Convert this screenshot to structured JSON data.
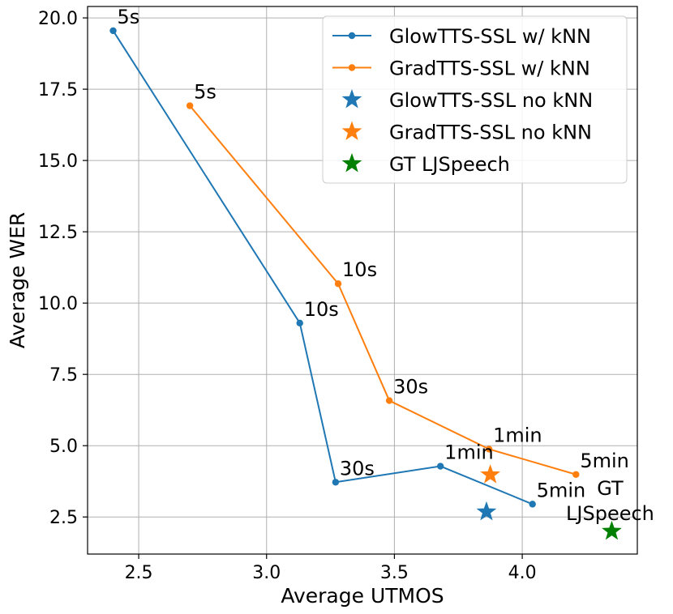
{
  "chart_data": {
    "type": "scatter",
    "title": "",
    "xlabel": "Average UTMOS",
    "ylabel": "Average WER",
    "xlim": [
      2.3,
      4.45
    ],
    "ylim": [
      1.2,
      20.4
    ],
    "grid": true,
    "legend_position": "top-right",
    "x_ticks": [
      2.5,
      3.0,
      3.5,
      4.0
    ],
    "x_tick_labels": [
      "2.5",
      "3.0",
      "3.5",
      "4.0"
    ],
    "y_ticks": [
      2.5,
      5.0,
      7.5,
      10.0,
      12.5,
      15.0,
      17.5,
      20.0
    ],
    "y_tick_labels": [
      "2.5",
      "5.0",
      "7.5",
      "10.0",
      "12.5",
      "15.0",
      "17.5",
      "20.0"
    ],
    "series": [
      {
        "name": "GlowTTS-SSL w/ kNN",
        "kind": "line",
        "color": "#1f77b4",
        "x": [
          2.4,
          3.13,
          3.27,
          3.68,
          4.04
        ],
        "y": [
          19.55,
          9.3,
          3.72,
          4.28,
          2.95
        ],
        "labels": [
          "5s",
          "10s",
          "30s",
          "1min",
          "5min"
        ]
      },
      {
        "name": "GradTTS-SSL w/ kNN",
        "kind": "line",
        "color": "#ff7f0e",
        "x": [
          2.7,
          3.28,
          3.48,
          3.87,
          4.21
        ],
        "y": [
          16.92,
          10.68,
          6.58,
          4.88,
          3.99
        ],
        "labels": [
          "5s",
          "10s",
          "30s",
          "1min",
          "5min"
        ]
      },
      {
        "name": "GlowTTS-SSL no kNN",
        "kind": "star",
        "color": "#1f77b4",
        "x": [
          3.86
        ],
        "y": [
          2.68
        ],
        "labels": [
          ""
        ]
      },
      {
        "name": "GradTTS-SSL no kNN",
        "kind": "star",
        "color": "#ff7f0e",
        "x": [
          3.875
        ],
        "y": [
          3.98
        ],
        "labels": [
          ""
        ]
      },
      {
        "name": "GT LJSpeech",
        "kind": "star",
        "color": "#008000",
        "x": [
          4.35
        ],
        "y": [
          2.0
        ],
        "labels": [
          "GT\nLJSpeech"
        ]
      }
    ]
  }
}
